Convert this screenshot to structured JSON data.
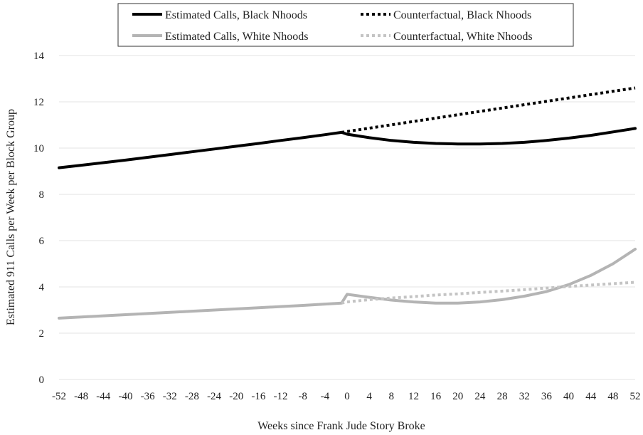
{
  "chart_data": {
    "type": "line",
    "title": "",
    "xlabel": "Weeks since Frank Jude Story Broke",
    "ylabel": "Estimated 911 Calls per Week per Block Group",
    "xlim": [
      -52,
      52
    ],
    "ylim": [
      0,
      14
    ],
    "x_ticks": [
      "-52",
      "-48",
      "-44",
      "-40",
      "-36",
      "-32",
      "-28",
      "-24",
      "-20",
      "-16",
      "-12",
      "-8",
      "-4",
      "0",
      "4",
      "8",
      "12",
      "16",
      "20",
      "24",
      "28",
      "32",
      "36",
      "40",
      "44",
      "48",
      "52"
    ],
    "y_ticks": [
      "0",
      "2",
      "4",
      "6",
      "8",
      "10",
      "12",
      "14"
    ],
    "grid": "horizontal",
    "legend_position": "top",
    "series": [
      {
        "name": "Estimated Calls, Black Nhoods",
        "style": "solid",
        "color": "#000000",
        "points": [
          [
            -52,
            9.15
          ],
          [
            -48,
            9.26
          ],
          [
            -44,
            9.37
          ],
          [
            -40,
            9.48
          ],
          [
            -36,
            9.6
          ],
          [
            -32,
            9.72
          ],
          [
            -28,
            9.84
          ],
          [
            -24,
            9.96
          ],
          [
            -20,
            10.08
          ],
          [
            -16,
            10.2
          ],
          [
            -12,
            10.33
          ],
          [
            -8,
            10.45
          ],
          [
            -4,
            10.58
          ],
          [
            -1,
            10.68
          ],
          [
            0,
            10.6
          ],
          [
            4,
            10.45
          ],
          [
            8,
            10.33
          ],
          [
            12,
            10.25
          ],
          [
            16,
            10.2
          ],
          [
            20,
            10.18
          ],
          [
            24,
            10.18
          ],
          [
            28,
            10.2
          ],
          [
            32,
            10.25
          ],
          [
            36,
            10.33
          ],
          [
            40,
            10.43
          ],
          [
            44,
            10.55
          ],
          [
            48,
            10.7
          ],
          [
            52,
            10.85
          ]
        ]
      },
      {
        "name": "Counterfactual, Black Nhoods",
        "style": "dotted",
        "color": "#000000",
        "points": [
          [
            -1,
            10.68
          ],
          [
            52,
            12.6
          ]
        ]
      },
      {
        "name": "Estimated Calls, White Nhoods",
        "style": "solid",
        "color": "#b4b4b4",
        "points": [
          [
            -52,
            2.65
          ],
          [
            -48,
            2.7
          ],
          [
            -44,
            2.75
          ],
          [
            -40,
            2.8
          ],
          [
            -36,
            2.85
          ],
          [
            -32,
            2.9
          ],
          [
            -28,
            2.95
          ],
          [
            -24,
            3.0
          ],
          [
            -20,
            3.05
          ],
          [
            -16,
            3.1
          ],
          [
            -12,
            3.15
          ],
          [
            -8,
            3.2
          ],
          [
            -4,
            3.26
          ],
          [
            -1,
            3.3
          ],
          [
            0,
            3.68
          ],
          [
            4,
            3.55
          ],
          [
            8,
            3.43
          ],
          [
            12,
            3.35
          ],
          [
            16,
            3.3
          ],
          [
            20,
            3.3
          ],
          [
            24,
            3.35
          ],
          [
            28,
            3.45
          ],
          [
            32,
            3.6
          ],
          [
            36,
            3.8
          ],
          [
            40,
            4.1
          ],
          [
            44,
            4.5
          ],
          [
            48,
            5.0
          ],
          [
            52,
            5.63
          ]
        ]
      },
      {
        "name": "Counterfactual, White Nhoods",
        "style": "dotted",
        "color": "#c4c4c4",
        "points": [
          [
            -1,
            3.3
          ],
          [
            0,
            3.35
          ],
          [
            4,
            3.45
          ],
          [
            8,
            3.52
          ],
          [
            12,
            3.58
          ],
          [
            16,
            3.65
          ],
          [
            20,
            3.7
          ],
          [
            24,
            3.76
          ],
          [
            28,
            3.82
          ],
          [
            32,
            3.88
          ],
          [
            36,
            3.95
          ],
          [
            40,
            4.02
          ],
          [
            44,
            4.08
          ],
          [
            48,
            4.14
          ],
          [
            52,
            4.2
          ]
        ]
      }
    ]
  }
}
